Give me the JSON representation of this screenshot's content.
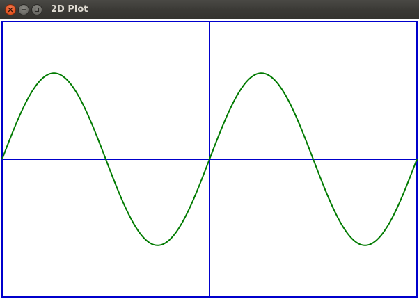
{
  "window": {
    "title": "2D Plot",
    "buttons": {
      "close": "close-icon",
      "minimize": "minimize-icon",
      "maximize": "maximize-icon"
    }
  },
  "colors": {
    "titlebar": "#3c3b37",
    "title_text": "#dfdbd2",
    "close_button": "#e2531f",
    "axes": "#0000cc",
    "curve": "#007a00",
    "background": "#ffffff"
  },
  "chart_data": {
    "type": "line",
    "title": "",
    "xlabel": "",
    "ylabel": "",
    "grid": false,
    "function": "sin",
    "xlim": [
      -6.2832,
      6.2832
    ],
    "ylim": [
      -1.6,
      1.6
    ],
    "series": [
      {
        "x": [
          -6.2832,
          -5.8905,
          -5.4978,
          -5.1051,
          -4.7124,
          -4.3197,
          -3.927,
          -3.5343,
          -3.1416,
          -2.7489,
          -2.3562,
          -1.9635,
          -1.5708,
          -1.1781,
          -0.7854,
          -0.3927,
          0,
          0.3927,
          0.7854,
          1.1781,
          1.5708,
          1.9635,
          2.3562,
          2.7489,
          3.1416,
          3.5343,
          3.927,
          4.3197,
          4.7124,
          5.1051,
          5.4978,
          5.8905,
          6.2832
        ],
        "y": [
          0,
          0.3827,
          0.7071,
          0.9239,
          1,
          0.9239,
          0.7071,
          0.3827,
          0,
          -0.3827,
          -0.7071,
          -0.9239,
          -1,
          -0.9239,
          -0.7071,
          -0.3827,
          0,
          0.3827,
          0.7071,
          0.9239,
          1,
          0.9239,
          0.7071,
          0.3827,
          0,
          -0.3827,
          -0.7071,
          -0.9239,
          -1,
          -0.9239,
          -0.7071,
          -0.3827,
          0
        ]
      }
    ]
  }
}
